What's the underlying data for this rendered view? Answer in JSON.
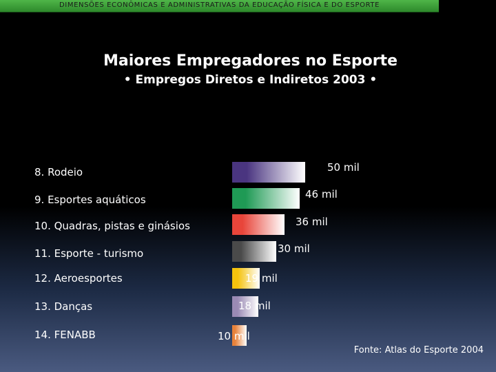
{
  "header": {
    "text": "DIMENSÕES ECONÔMICAS E ADMINISTRATIVAS DA EDUCAÇÃO FÍSICA E DO ESPORTE"
  },
  "chart_data": {
    "type": "bar",
    "orientation": "horizontal",
    "title": "Maiores Empregadores no Esporte",
    "subtitle": "• Empregos Diretos e Indiretos 2003 •",
    "categories": [
      "8. Rodeio",
      "9. Esportes aquáticos",
      "10. Quadras, pistas e ginásios",
      "11. Esporte - turismo",
      "12. Aeroesportes",
      "13. Danças",
      "14. FENABB"
    ],
    "values": [
      50,
      46,
      36,
      30,
      19,
      18,
      10
    ],
    "value_labels": [
      "50 mil",
      "46 mil",
      "36 mil",
      "30 mil",
      "19 mil",
      "18 mil",
      "10 mil"
    ],
    "unit": "mil",
    "bar_colors": [
      "#4a3580",
      "#1f9a55",
      "#e8453a",
      "#4a4a4a",
      "#f4c20d",
      "#9a8ab4",
      "#e8823a"
    ]
  },
  "source": "Fonte: Atlas do Esporte 2004"
}
